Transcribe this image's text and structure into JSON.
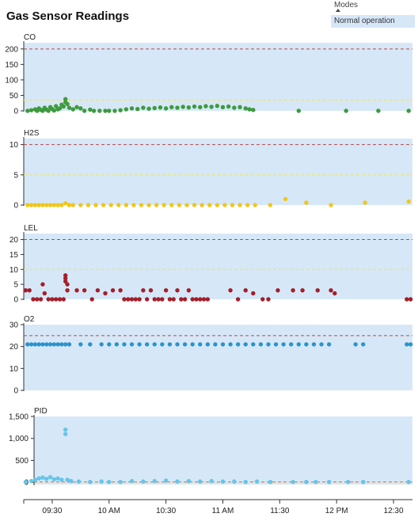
{
  "page": {
    "title": "Gas Sensor Readings"
  },
  "modes": {
    "label": "Modes",
    "selected": "Normal operation"
  },
  "colors": {
    "panel_bg": "#d6e8f7",
    "threshold_high": "#b5494b",
    "threshold_low": "#f0e36a",
    "CO": "#3e9a3e",
    "H2S": "#f2c618",
    "LEL": "#a41e2a",
    "O2": "#2b93cc",
    "PID": "#67c4ea"
  },
  "chart_data": {
    "type": "scatter",
    "x_axis": {
      "range": [
        "09:15",
        "12:40"
      ],
      "ticks": [
        "09:30",
        "10 AM",
        "10:30",
        "11 AM",
        "11:30",
        "12 PM",
        "12:30"
      ]
    },
    "panels": [
      {
        "name": "CO",
        "ylim": [
          0,
          220
        ],
        "yticks": [
          "0",
          "50",
          "100",
          "150",
          "200"
        ],
        "tick_values": [
          0,
          50,
          100,
          150,
          200
        ],
        "thresholds": {
          "high": 200,
          "low": 35
        },
        "points": [
          [
            "09:17",
            0
          ],
          [
            "09:19",
            2
          ],
          [
            "09:21",
            5
          ],
          [
            "09:22",
            0
          ],
          [
            "09:23",
            8
          ],
          [
            "09:24",
            3
          ],
          [
            "09:25",
            0
          ],
          [
            "09:26",
            10
          ],
          [
            "09:27",
            4
          ],
          [
            "09:28",
            0
          ],
          [
            "09:29",
            12
          ],
          [
            "09:30",
            6
          ],
          [
            "09:31",
            1
          ],
          [
            "09:32",
            15
          ],
          [
            "09:33",
            5
          ],
          [
            "09:34",
            8
          ],
          [
            "09:35",
            20
          ],
          [
            "09:36",
            14
          ],
          [
            "09:37",
            38
          ],
          [
            "09:37",
            28
          ],
          [
            "09:38",
            22
          ],
          [
            "09:39",
            10
          ],
          [
            "09:41",
            5
          ],
          [
            "09:43",
            12
          ],
          [
            "09:45",
            8
          ],
          [
            "09:47",
            0
          ],
          [
            "09:50",
            4
          ],
          [
            "09:52",
            0
          ],
          [
            "09:55",
            0
          ],
          [
            "09:58",
            0
          ],
          [
            "10:00",
            0
          ],
          [
            "10:03",
            0
          ],
          [
            "10:06",
            2
          ],
          [
            "10:09",
            5
          ],
          [
            "10:12",
            8
          ],
          [
            "10:15",
            6
          ],
          [
            "10:18",
            10
          ],
          [
            "10:21",
            7
          ],
          [
            "10:24",
            9
          ],
          [
            "10:27",
            11
          ],
          [
            "10:30",
            8
          ],
          [
            "10:33",
            12
          ],
          [
            "10:36",
            10
          ],
          [
            "10:39",
            13
          ],
          [
            "10:42",
            11
          ],
          [
            "10:45",
            14
          ],
          [
            "10:48",
            12
          ],
          [
            "10:51",
            15
          ],
          [
            "10:54",
            13
          ],
          [
            "10:57",
            16
          ],
          [
            "11:00",
            12
          ],
          [
            "11:03",
            14
          ],
          [
            "11:06",
            10
          ],
          [
            "11:09",
            12
          ],
          [
            "11:12",
            8
          ],
          [
            "11:14",
            5
          ],
          [
            "11:16",
            3
          ],
          [
            "11:40",
            0
          ],
          [
            "12:05",
            0
          ],
          [
            "12:22",
            0
          ],
          [
            "12:38",
            0
          ]
        ]
      },
      {
        "name": "H2S",
        "ylim": [
          0,
          11
        ],
        "yticks": [
          "0",
          "5",
          "10"
        ],
        "tick_values": [
          0,
          5,
          10
        ],
        "thresholds": {
          "high": 10,
          "low": 5
        },
        "points": [
          [
            "09:17",
            0
          ],
          [
            "09:19",
            0
          ],
          [
            "09:21",
            0
          ],
          [
            "09:23",
            0
          ],
          [
            "09:25",
            0
          ],
          [
            "09:27",
            0
          ],
          [
            "09:29",
            0
          ],
          [
            "09:31",
            0
          ],
          [
            "09:33",
            0
          ],
          [
            "09:35",
            0
          ],
          [
            "09:37",
            0.3
          ],
          [
            "09:39",
            0
          ],
          [
            "09:41",
            0
          ],
          [
            "09:45",
            0
          ],
          [
            "09:49",
            0
          ],
          [
            "09:53",
            0
          ],
          [
            "09:57",
            0
          ],
          [
            "10:01",
            0
          ],
          [
            "10:05",
            0
          ],
          [
            "10:09",
            0
          ],
          [
            "10:13",
            0
          ],
          [
            "10:17",
            0
          ],
          [
            "10:21",
            0
          ],
          [
            "10:25",
            0
          ],
          [
            "10:29",
            0
          ],
          [
            "10:33",
            0
          ],
          [
            "10:37",
            0
          ],
          [
            "10:41",
            0
          ],
          [
            "10:45",
            0
          ],
          [
            "10:49",
            0
          ],
          [
            "10:53",
            0
          ],
          [
            "10:57",
            0
          ],
          [
            "11:01",
            0
          ],
          [
            "11:05",
            0
          ],
          [
            "11:09",
            0
          ],
          [
            "11:13",
            0
          ],
          [
            "11:17",
            0
          ],
          [
            "11:25",
            0
          ],
          [
            "11:33",
            1.0
          ],
          [
            "11:44",
            0.4
          ],
          [
            "11:57",
            0
          ],
          [
            "12:15",
            0.4
          ],
          [
            "12:38",
            0.6
          ]
        ]
      },
      {
        "name": "LEL",
        "ylim": [
          0,
          22
        ],
        "yticks": [
          "0",
          "5",
          "10",
          "15",
          "20"
        ],
        "tick_values": [
          0,
          5,
          10,
          15,
          20
        ],
        "thresholds": {
          "high": 20,
          "low": 10
        },
        "points": [
          [
            "09:16",
            3
          ],
          [
            "09:18",
            3
          ],
          [
            "09:20",
            0
          ],
          [
            "09:22",
            0
          ],
          [
            "09:24",
            0
          ],
          [
            "09:25",
            5
          ],
          [
            "09:26",
            2
          ],
          [
            "09:28",
            0
          ],
          [
            "09:30",
            0
          ],
          [
            "09:32",
            0
          ],
          [
            "09:34",
            0
          ],
          [
            "09:36",
            0
          ],
          [
            "09:37",
            8
          ],
          [
            "09:37",
            7
          ],
          [
            "09:37",
            6
          ],
          [
            "09:38",
            5
          ],
          [
            "09:38",
            3
          ],
          [
            "09:43",
            3
          ],
          [
            "09:47",
            3
          ],
          [
            "09:51",
            0
          ],
          [
            "09:54",
            3
          ],
          [
            "09:58",
            2
          ],
          [
            "10:02",
            3
          ],
          [
            "10:06",
            3
          ],
          [
            "10:08",
            0
          ],
          [
            "10:10",
            0
          ],
          [
            "10:12",
            0
          ],
          [
            "10:14",
            0
          ],
          [
            "10:16",
            0
          ],
          [
            "10:18",
            3
          ],
          [
            "10:20",
            0
          ],
          [
            "10:22",
            3
          ],
          [
            "10:24",
            0
          ],
          [
            "10:26",
            0
          ],
          [
            "10:28",
            0
          ],
          [
            "10:30",
            3
          ],
          [
            "10:32",
            0
          ],
          [
            "10:34",
            0
          ],
          [
            "10:36",
            3
          ],
          [
            "10:38",
            0
          ],
          [
            "10:40",
            0
          ],
          [
            "10:42",
            3
          ],
          [
            "10:44",
            0
          ],
          [
            "10:46",
            0
          ],
          [
            "10:48",
            0
          ],
          [
            "10:50",
            0
          ],
          [
            "10:52",
            0
          ],
          [
            "11:04",
            3
          ],
          [
            "11:08",
            0
          ],
          [
            "11:12",
            3
          ],
          [
            "11:16",
            2
          ],
          [
            "11:21",
            0
          ],
          [
            "11:24",
            0
          ],
          [
            "11:29",
            3
          ],
          [
            "11:37",
            3
          ],
          [
            "11:42",
            3
          ],
          [
            "11:50",
            3
          ],
          [
            "11:57",
            3
          ],
          [
            "11:59",
            2
          ],
          [
            "12:37",
            0
          ],
          [
            "12:39",
            0
          ]
        ]
      },
      {
        "name": "O2",
        "ylim": [
          0,
          30
        ],
        "yticks": [
          "0",
          "10",
          "20",
          "30"
        ],
        "tick_values": [
          0,
          10,
          20,
          30
        ],
        "thresholds": {
          "high": 25,
          "low": null
        },
        "points": [
          [
            "09:17",
            21
          ],
          [
            "09:19",
            21
          ],
          [
            "09:21",
            21
          ],
          [
            "09:23",
            21
          ],
          [
            "09:25",
            21
          ],
          [
            "09:27",
            21
          ],
          [
            "09:29",
            21
          ],
          [
            "09:31",
            21
          ],
          [
            "09:33",
            21
          ],
          [
            "09:35",
            21
          ],
          [
            "09:37",
            21
          ],
          [
            "09:39",
            21
          ],
          [
            "09:45",
            21
          ],
          [
            "09:50",
            21
          ],
          [
            "09:56",
            21
          ],
          [
            "10:00",
            21
          ],
          [
            "10:04",
            21
          ],
          [
            "10:08",
            21
          ],
          [
            "10:12",
            21
          ],
          [
            "10:16",
            21
          ],
          [
            "10:20",
            21
          ],
          [
            "10:24",
            21
          ],
          [
            "10:28",
            21
          ],
          [
            "10:32",
            21
          ],
          [
            "10:36",
            21
          ],
          [
            "10:40",
            21
          ],
          [
            "10:44",
            21
          ],
          [
            "10:48",
            21
          ],
          [
            "10:52",
            21
          ],
          [
            "10:56",
            21
          ],
          [
            "11:00",
            21
          ],
          [
            "11:04",
            21
          ],
          [
            "11:08",
            21
          ],
          [
            "11:12",
            21
          ],
          [
            "11:16",
            21
          ],
          [
            "11:20",
            21
          ],
          [
            "11:24",
            21
          ],
          [
            "11:28",
            21
          ],
          [
            "11:32",
            21
          ],
          [
            "11:36",
            21
          ],
          [
            "11:40",
            21
          ],
          [
            "11:44",
            21
          ],
          [
            "11:48",
            21
          ],
          [
            "11:52",
            21
          ],
          [
            "11:56",
            21
          ],
          [
            "12:10",
            21
          ],
          [
            "12:14",
            21
          ],
          [
            "12:37",
            21
          ],
          [
            "12:39",
            21
          ]
        ]
      },
      {
        "name": "PID",
        "ylim": [
          -50,
          1500
        ],
        "yticks": [
          "0",
          "500",
          "1,000",
          "1,500"
        ],
        "tick_values": [
          0,
          500,
          1000,
          1500
        ],
        "thresholds": {
          "high": null,
          "low": 10
        },
        "points": [
          [
            "09:16",
            10
          ],
          [
            "09:19",
            30
          ],
          [
            "09:21",
            60
          ],
          [
            "09:23",
            90
          ],
          [
            "09:25",
            110
          ],
          [
            "09:27",
            80
          ],
          [
            "09:29",
            120
          ],
          [
            "09:31",
            70
          ],
          [
            "09:33",
            90
          ],
          [
            "09:35",
            60
          ],
          [
            "09:37",
            1200
          ],
          [
            "09:37",
            1100
          ],
          [
            "09:38",
            60
          ],
          [
            "09:40",
            30
          ],
          [
            "09:44",
            20
          ],
          [
            "09:50",
            10
          ],
          [
            "09:56",
            20
          ],
          [
            "10:00",
            10
          ],
          [
            "10:06",
            10
          ],
          [
            "10:12",
            30
          ],
          [
            "10:18",
            20
          ],
          [
            "10:24",
            30
          ],
          [
            "10:30",
            40
          ],
          [
            "10:36",
            20
          ],
          [
            "10:42",
            30
          ],
          [
            "10:48",
            20
          ],
          [
            "10:54",
            30
          ],
          [
            "11:00",
            20
          ],
          [
            "11:06",
            20
          ],
          [
            "11:12",
            10
          ],
          [
            "11:18",
            20
          ],
          [
            "11:25",
            10
          ],
          [
            "11:37",
            10
          ],
          [
            "11:44",
            10
          ],
          [
            "11:49",
            10
          ],
          [
            "11:56",
            10
          ],
          [
            "12:06",
            10
          ],
          [
            "12:14",
            10
          ],
          [
            "12:38",
            10
          ]
        ]
      }
    ]
  }
}
